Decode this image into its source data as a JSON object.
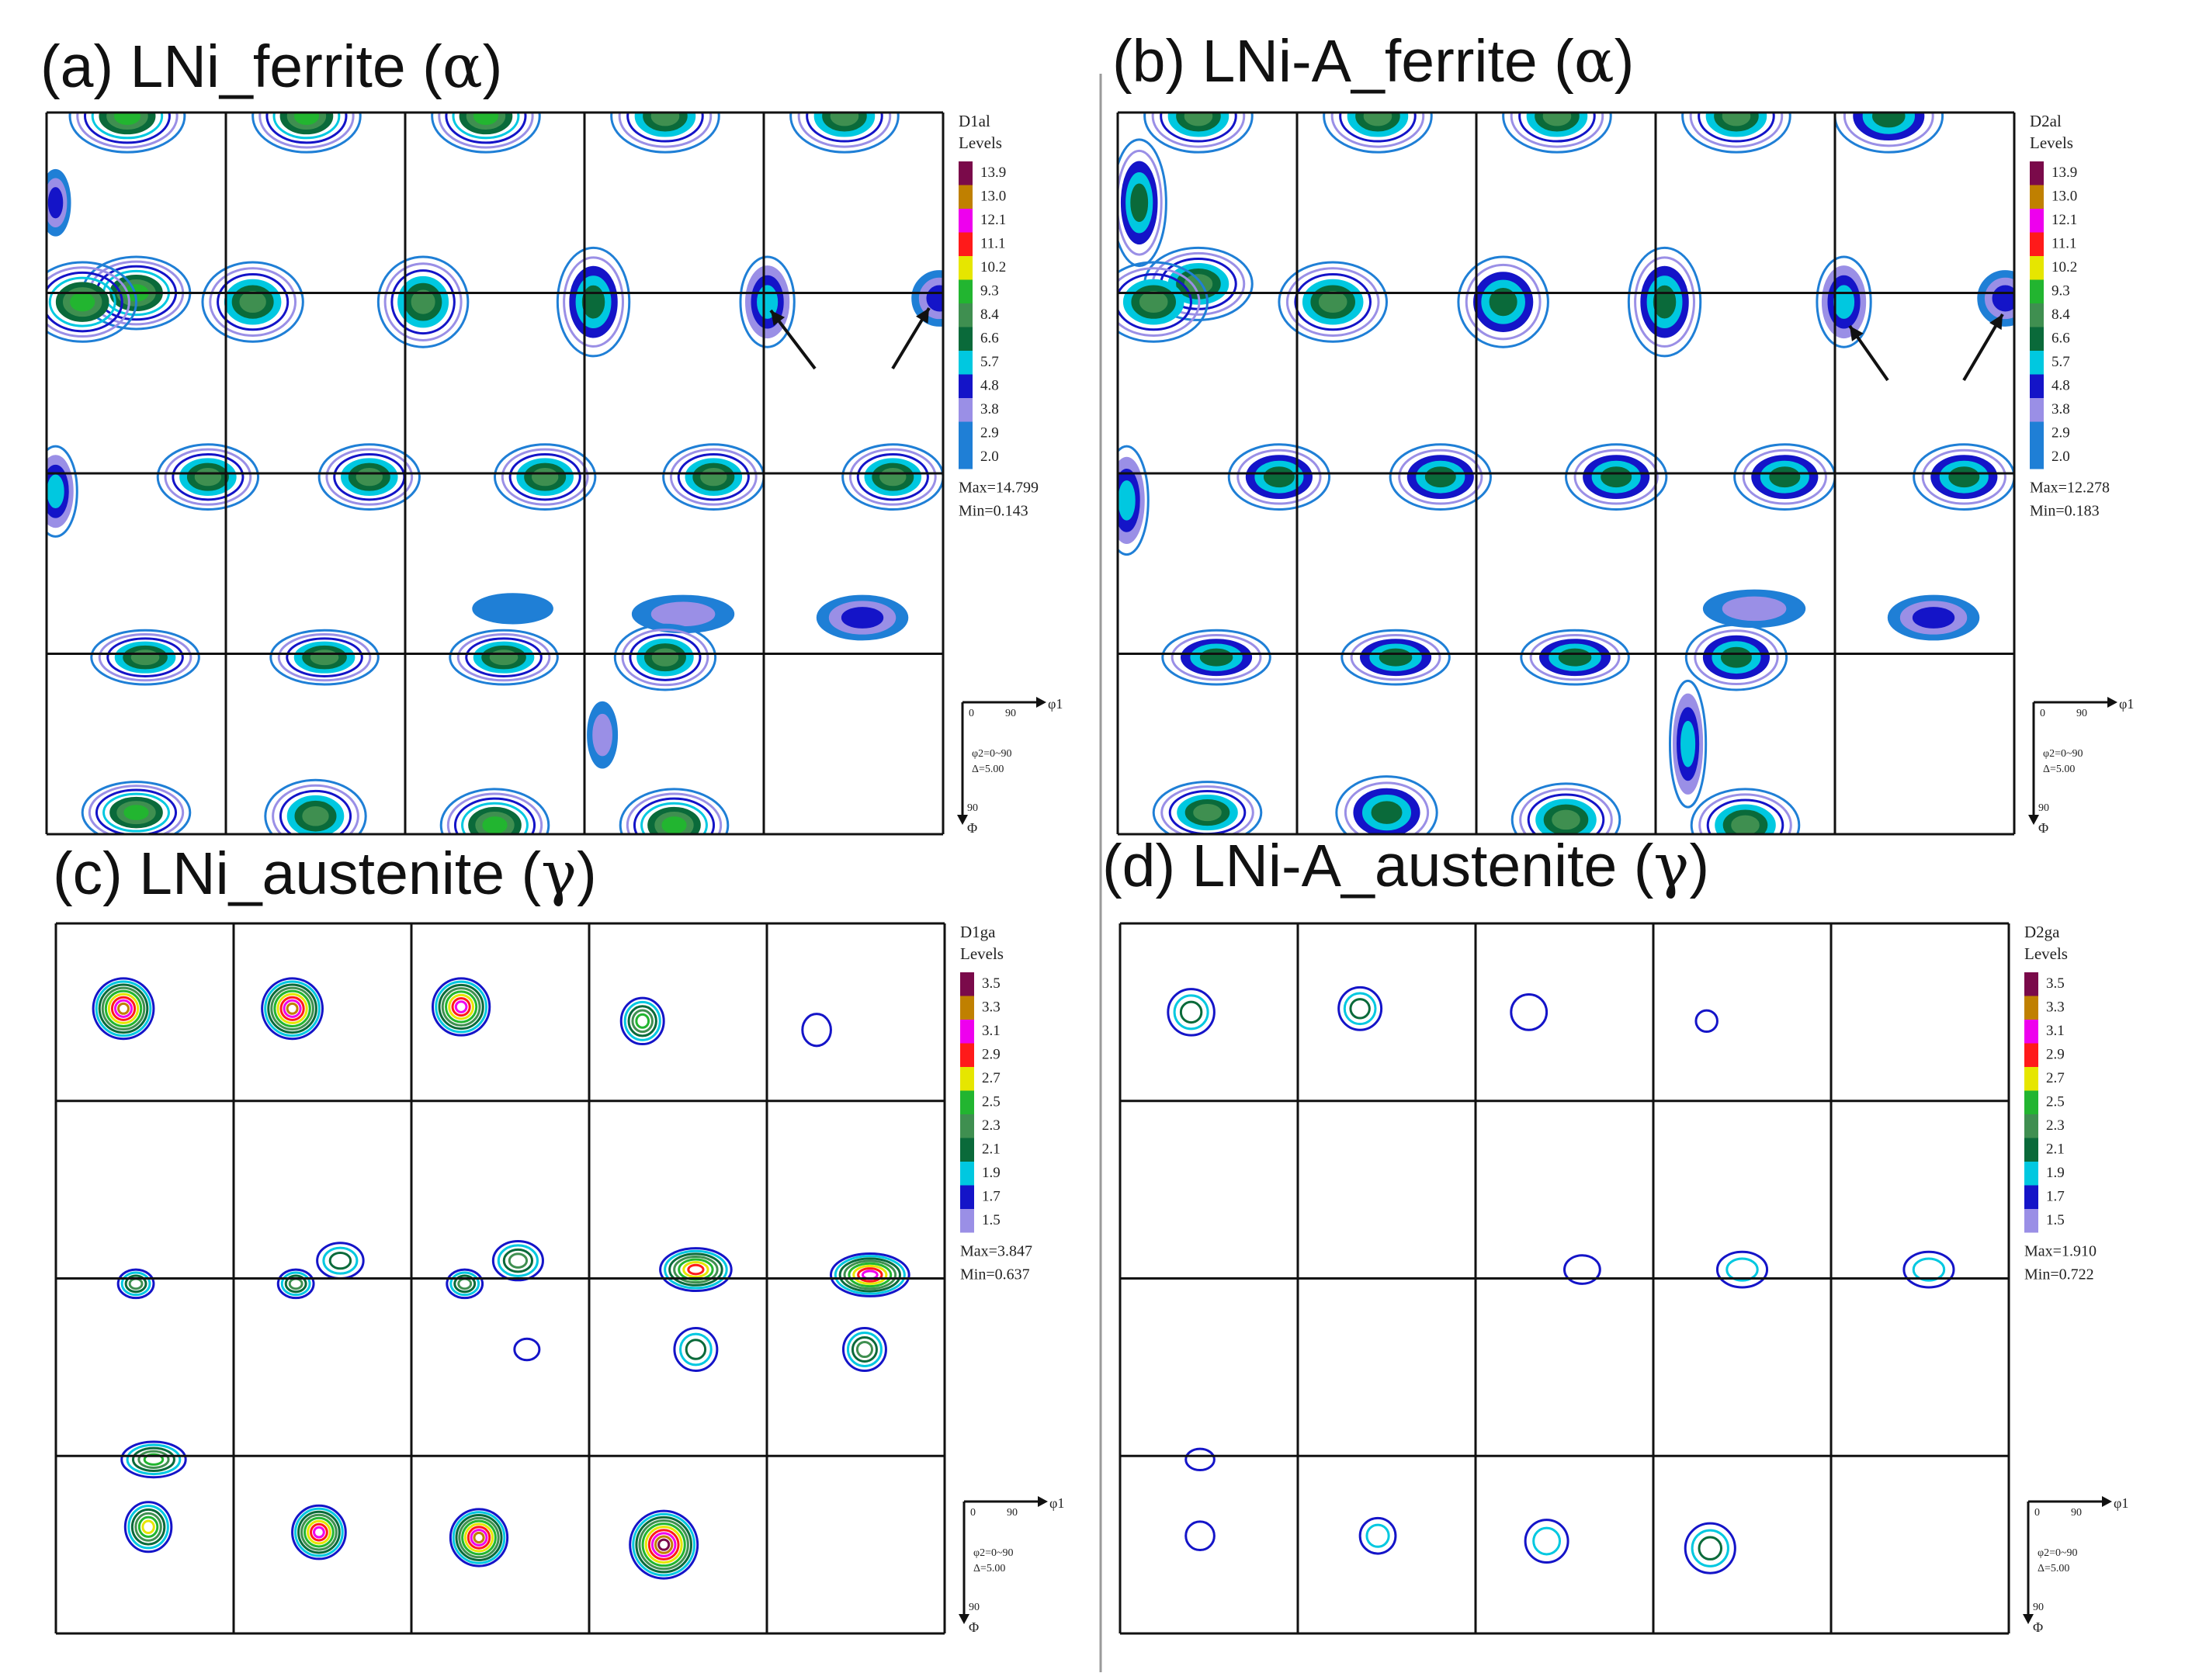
{
  "colors": {
    "grid": "#111111",
    "divider": "#9a9a9a",
    "contour_palette": [
      "#1f7fd6",
      "#9a8fe6",
      "#1414c8",
      "#00c8e0",
      "#0a6a3a",
      "#3f8f50",
      "#22b530",
      "#e6e600",
      "#ff1a1a",
      "#ee00ee",
      "#c08000",
      "#7a0a4a"
    ]
  },
  "panels": [
    {
      "id": "a",
      "label": "(a) LNi_ferrite (",
      "greek": "α",
      "suffix": ")",
      "legend": {
        "code": "D1al",
        "heading": "Levels",
        "levels": [
          "13.9",
          "13.0",
          "12.1",
          "11.1",
          "10.2",
          "9.3",
          "8.4",
          "6.6",
          "5.7",
          "4.8",
          "3.8",
          "2.9",
          "2.0"
        ],
        "max": "Max=14.799",
        "min": "Min=0.143"
      },
      "axes": {
        "start": "0",
        "end": "90",
        "phi1": "φ1",
        "phi2": "φ2=0~90",
        "delta": "Δ=5.00",
        "phi": "Φ",
        "v90": "90"
      }
    },
    {
      "id": "b",
      "label": "(b) LNi-A_ferrite (",
      "greek": "α",
      "suffix": ")",
      "legend": {
        "code": "D2al",
        "heading": "Levels",
        "levels": [
          "13.9",
          "13.0",
          "12.1",
          "11.1",
          "10.2",
          "9.3",
          "8.4",
          "6.6",
          "5.7",
          "4.8",
          "3.8",
          "2.9",
          "2.0"
        ],
        "max": "Max=12.278",
        "min": "Min=0.183"
      },
      "axes": {
        "start": "0",
        "end": "90",
        "phi1": "φ1",
        "phi2": "φ2=0~90",
        "delta": "Δ=5.00",
        "phi": "Φ",
        "v90": "90"
      }
    },
    {
      "id": "c",
      "label": "(c) LNi_austenite (",
      "greek": "γ",
      "suffix": ")",
      "legend": {
        "code": "D1ga",
        "heading": "Levels",
        "levels": [
          "3.5",
          "3.3",
          "3.1",
          "2.9",
          "2.7",
          "2.5",
          "2.3",
          "2.1",
          "1.9",
          "1.7",
          "1.5"
        ],
        "max": "Max=3.847",
        "min": "Min=0.637"
      },
      "axes": {
        "start": "0",
        "end": "90",
        "phi1": "φ1",
        "phi2": "φ2=0~90",
        "delta": "Δ=5.00",
        "phi": "Φ",
        "v90": "90"
      }
    },
    {
      "id": "d",
      "label": "(d) LNi-A_austenite (",
      "greek": "γ",
      "suffix": ")",
      "legend": {
        "code": "D2ga",
        "heading": "Levels",
        "levels": [
          "3.5",
          "3.3",
          "3.1",
          "2.9",
          "2.7",
          "2.5",
          "2.3",
          "2.1",
          "1.9",
          "1.7",
          "1.5"
        ],
        "max": "Max=1.910",
        "min": "Min=0.722"
      },
      "axes": {
        "start": "0",
        "end": "90",
        "phi1": "φ1",
        "phi2": "φ2=0~90",
        "delta": "Δ=5.00",
        "phi": "Φ",
        "v90": "90"
      }
    }
  ]
}
